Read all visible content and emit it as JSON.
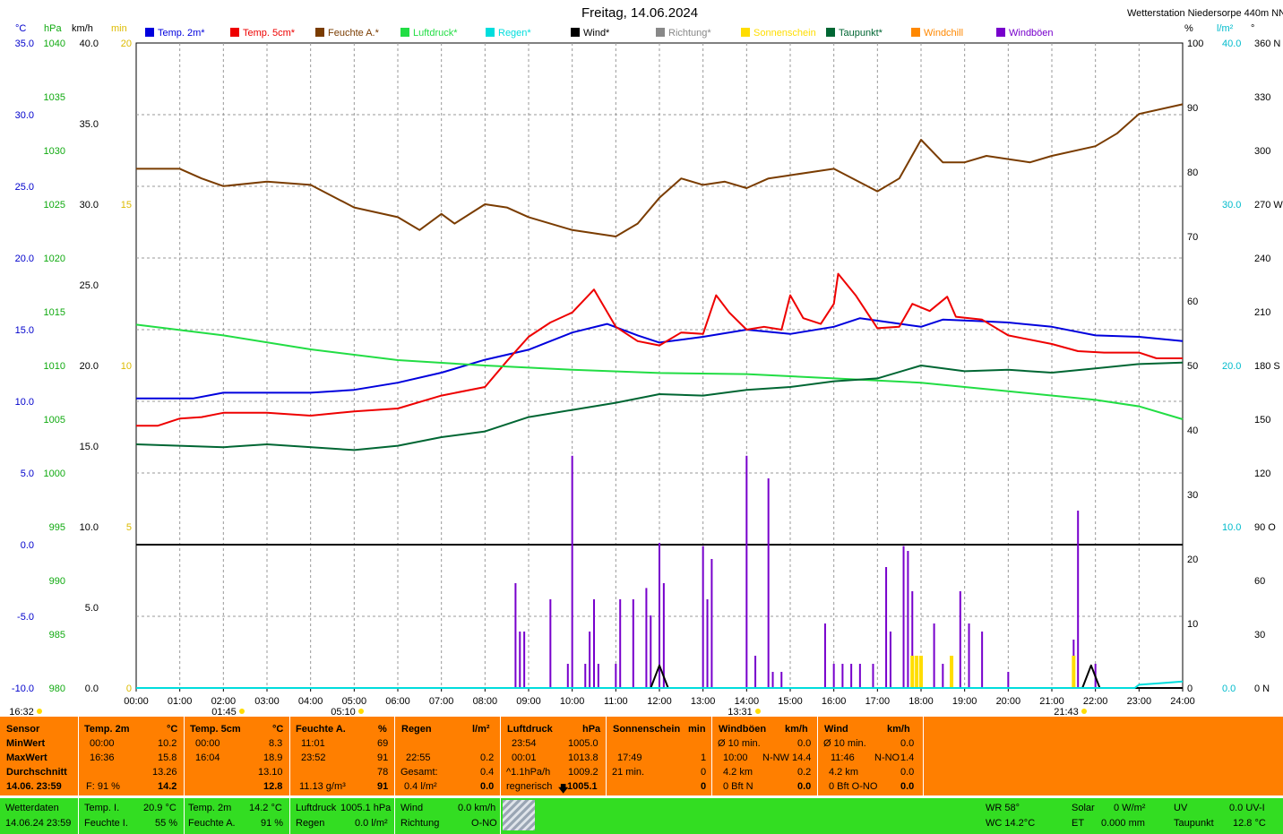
{
  "title": "Freitag, 14.06.2024",
  "station": "Wetterstation Niedersorpe 440m NN",
  "units": {
    "temp": "°C",
    "hpa": "hPa",
    "kmh": "km/h",
    "min": "min",
    "pct": "%",
    "lm2": "l/m²",
    "deg": "°"
  },
  "legend": [
    {
      "label": "Temp. 2m*",
      "color": "#0000dd"
    },
    {
      "label": "Temp. 5cm*",
      "color": "#ee0000"
    },
    {
      "label": "Feuchte A.*",
      "color": "#7a3c00"
    },
    {
      "label": "Luftdruck*",
      "color": "#22dd44"
    },
    {
      "label": "Regen*",
      "color": "#00dddd"
    },
    {
      "label": "Wind*",
      "color": "#000000"
    },
    {
      "label": "Richtung*",
      "color": "#888888"
    },
    {
      "label": "Sonnenschein",
      "color": "#ffdd00"
    },
    {
      "label": "Taupunkt*",
      "color": "#006633"
    },
    {
      "label": "Windchill",
      "color": "#ff8800"
    },
    {
      "label": "Windböen",
      "color": "#7700cc"
    }
  ],
  "axes": {
    "temp": [
      "35.0",
      "30.0",
      "25.0",
      "20.0",
      "15.0",
      "10.0",
      "5.0",
      "0.0",
      "-5.0",
      "-10.0"
    ],
    "hpa": [
      "1040",
      "1035",
      "1030",
      "1025",
      "1020",
      "1015",
      "1010",
      "1005",
      "1000",
      "995",
      "990",
      "985",
      "980"
    ],
    "kmh": [
      "40.0",
      "35.0",
      "30.0",
      "25.0",
      "20.0",
      "15.0",
      "10.0",
      "5.0",
      "0.0"
    ],
    "min": [
      "20",
      "15",
      "10",
      "5",
      "0"
    ],
    "pct": [
      "100",
      "90",
      "80",
      "70",
      "60",
      "50",
      "40",
      "30",
      "20",
      "10",
      "0"
    ],
    "rain": [
      "40.0",
      "30.0",
      "20.0",
      "10.0",
      "0.0"
    ],
    "dir": [
      "360 N",
      "330",
      "300",
      "270 W",
      "240",
      "210",
      "180 S",
      "150",
      "120",
      "90 O",
      "60",
      "30",
      "0 N"
    ],
    "time": [
      "00:00",
      "01:00",
      "02:00",
      "03:00",
      "04:00",
      "05:00",
      "06:00",
      "07:00",
      "08:00",
      "09:00",
      "10:00",
      "11:00",
      "12:00",
      "13:00",
      "14:00",
      "15:00",
      "16:00",
      "17:00",
      "18:00",
      "19:00",
      "20:00",
      "21:00",
      "22:00",
      "23:00",
      "24:00"
    ]
  },
  "markers": [
    {
      "label": "16:32"
    },
    {
      "label": "01:45"
    },
    {
      "label": "05:10"
    },
    {
      "label": "13:31"
    },
    {
      "label": "21:43"
    }
  ],
  "chart_data": {
    "type": "line",
    "title": "Freitag, 14.06.2024",
    "x_unit": "hour",
    "series": [
      {
        "name": "Temp. 2m",
        "unit": "°C",
        "color": "#0000dd",
        "points": [
          [
            0,
            10.2
          ],
          [
            1.3,
            10.2
          ],
          [
            2,
            10.6
          ],
          [
            3,
            10.6
          ],
          [
            4,
            10.6
          ],
          [
            5,
            10.8
          ],
          [
            6,
            11.3
          ],
          [
            7,
            12.0
          ],
          [
            8,
            12.9
          ],
          [
            9,
            13.6
          ],
          [
            10,
            14.8
          ],
          [
            10.8,
            15.4
          ],
          [
            11.5,
            14.6
          ],
          [
            12,
            14.1
          ],
          [
            13,
            14.5
          ],
          [
            14,
            15.0
          ],
          [
            15,
            14.7
          ],
          [
            16,
            15.2
          ],
          [
            16.6,
            15.8
          ],
          [
            17.3,
            15.5
          ],
          [
            18,
            15.2
          ],
          [
            18.5,
            15.7
          ],
          [
            19.3,
            15.6
          ],
          [
            20,
            15.5
          ],
          [
            21,
            15.2
          ],
          [
            22,
            14.6
          ],
          [
            23,
            14.5
          ],
          [
            24,
            14.2
          ]
        ]
      },
      {
        "name": "Temp. 5cm",
        "unit": "°C",
        "color": "#ee0000",
        "points": [
          [
            0,
            8.3
          ],
          [
            0.5,
            8.3
          ],
          [
            1,
            8.8
          ],
          [
            1.5,
            8.9
          ],
          [
            2,
            9.2
          ],
          [
            3,
            9.2
          ],
          [
            4,
            9.0
          ],
          [
            5,
            9.3
          ],
          [
            6,
            9.5
          ],
          [
            7,
            10.4
          ],
          [
            8,
            11.0
          ],
          [
            8.5,
            12.8
          ],
          [
            9,
            14.5
          ],
          [
            9.5,
            15.5
          ],
          [
            10,
            16.2
          ],
          [
            10.5,
            17.8
          ],
          [
            11,
            15.2
          ],
          [
            11.5,
            14.2
          ],
          [
            12,
            13.9
          ],
          [
            12.5,
            14.8
          ],
          [
            13,
            14.7
          ],
          [
            13.3,
            17.4
          ],
          [
            13.6,
            16.2
          ],
          [
            14,
            15.0
          ],
          [
            14.4,
            15.2
          ],
          [
            14.8,
            15.0
          ],
          [
            15,
            17.4
          ],
          [
            15.3,
            15.8
          ],
          [
            15.7,
            15.4
          ],
          [
            16,
            16.8
          ],
          [
            16.1,
            18.9
          ],
          [
            16.5,
            17.4
          ],
          [
            17,
            15.1
          ],
          [
            17.5,
            15.2
          ],
          [
            17.8,
            16.8
          ],
          [
            18.2,
            16.3
          ],
          [
            18.6,
            17.3
          ],
          [
            18.8,
            15.9
          ],
          [
            19.4,
            15.7
          ],
          [
            20,
            14.6
          ],
          [
            21,
            14.0
          ],
          [
            21.6,
            13.5
          ],
          [
            22.2,
            13.4
          ],
          [
            23,
            13.4
          ],
          [
            23.4,
            13.0
          ],
          [
            24,
            13.0
          ]
        ]
      },
      {
        "name": "Feuchte A.",
        "unit": "%",
        "color": "#7a3c00",
        "points": [
          [
            0,
            80.5
          ],
          [
            1,
            80.5
          ],
          [
            1.5,
            79
          ],
          [
            2,
            77.8
          ],
          [
            3,
            78.5
          ],
          [
            4,
            78
          ],
          [
            5,
            74.5
          ],
          [
            6,
            73
          ],
          [
            6.5,
            71
          ],
          [
            7,
            73.5
          ],
          [
            7.3,
            72
          ],
          [
            8,
            75
          ],
          [
            8.5,
            74.5
          ],
          [
            9,
            73
          ],
          [
            10,
            71
          ],
          [
            11,
            70
          ],
          [
            11.5,
            72
          ],
          [
            12,
            76
          ],
          [
            12.5,
            79
          ],
          [
            13,
            78
          ],
          [
            13.5,
            78.5
          ],
          [
            14,
            77.5
          ],
          [
            14.5,
            79
          ],
          [
            15,
            79.5
          ],
          [
            15.5,
            80
          ],
          [
            16,
            80.5
          ],
          [
            17,
            77
          ],
          [
            17.5,
            79
          ],
          [
            18,
            85
          ],
          [
            18.5,
            81.5
          ],
          [
            19,
            81.5
          ],
          [
            19.5,
            82.5
          ],
          [
            20,
            82
          ],
          [
            20.5,
            81.5
          ],
          [
            21,
            82.5
          ],
          [
            22,
            84
          ],
          [
            22.5,
            86
          ],
          [
            23,
            89
          ],
          [
            24,
            90.5
          ]
        ]
      },
      {
        "name": "Luftdruck",
        "unit": "hPa",
        "color": "#22dd44",
        "points": [
          [
            0,
            1013.8
          ],
          [
            2,
            1012.8
          ],
          [
            4,
            1011.5
          ],
          [
            6,
            1010.5
          ],
          [
            8,
            1010.0
          ],
          [
            10,
            1009.6
          ],
          [
            12,
            1009.3
          ],
          [
            14,
            1009.2
          ],
          [
            16,
            1008.8
          ],
          [
            18,
            1008.4
          ],
          [
            20,
            1007.6
          ],
          [
            22,
            1006.8
          ],
          [
            23,
            1006.2
          ],
          [
            24,
            1005.0
          ]
        ]
      },
      {
        "name": "Taupunkt",
        "unit": "°C",
        "color": "#006633",
        "points": [
          [
            0,
            7.0
          ],
          [
            2,
            6.8
          ],
          [
            3,
            7.0
          ],
          [
            5,
            6.6
          ],
          [
            6,
            6.9
          ],
          [
            7,
            7.5
          ],
          [
            8,
            7.9
          ],
          [
            9,
            8.9
          ],
          [
            10,
            9.4
          ],
          [
            11,
            9.9
          ],
          [
            12,
            10.5
          ],
          [
            13,
            10.4
          ],
          [
            14,
            10.8
          ],
          [
            15,
            11.0
          ],
          [
            16,
            11.4
          ],
          [
            17,
            11.6
          ],
          [
            18,
            12.5
          ],
          [
            19,
            12.1
          ],
          [
            20,
            12.2
          ],
          [
            21,
            12.0
          ],
          [
            22,
            12.3
          ],
          [
            23,
            12.6
          ],
          [
            24,
            12.7
          ]
        ]
      },
      {
        "name": "Wind",
        "unit": "km/h",
        "color": "#000000",
        "points": [
          [
            0,
            0
          ],
          [
            11.8,
            0
          ],
          [
            12,
            1.4
          ],
          [
            12.2,
            0
          ],
          [
            21.7,
            0
          ],
          [
            21.9,
            1.4
          ],
          [
            22.1,
            0
          ],
          [
            24,
            0
          ]
        ]
      },
      {
        "name": "Regen",
        "unit": "l/m²",
        "color": "#00dddd",
        "points": [
          [
            0,
            0
          ],
          [
            22.9,
            0
          ],
          [
            23,
            0.2
          ],
          [
            23.5,
            0.3
          ],
          [
            24,
            0.4
          ]
        ]
      },
      {
        "name": "Windböen",
        "unit": "km/h",
        "color": "#7700cc",
        "bars": [
          [
            8.7,
            6.5
          ],
          [
            8.8,
            3.5
          ],
          [
            8.9,
            3.5
          ],
          [
            9.5,
            5.5
          ],
          [
            9.9,
            1.5
          ],
          [
            10,
            14.4
          ],
          [
            10.3,
            1.5
          ],
          [
            10.4,
            3.5
          ],
          [
            10.5,
            5.5
          ],
          [
            10.6,
            1.5
          ],
          [
            11,
            1.5
          ],
          [
            11.1,
            5.5
          ],
          [
            11.4,
            5.5
          ],
          [
            11.7,
            6.2
          ],
          [
            11.8,
            4.5
          ],
          [
            12,
            9.0
          ],
          [
            12.1,
            6.5
          ],
          [
            13,
            8.8
          ],
          [
            13.1,
            5.5
          ],
          [
            13.2,
            8.0
          ],
          [
            14,
            14.4
          ],
          [
            14.2,
            2.0
          ],
          [
            14.5,
            13.0
          ],
          [
            14.6,
            1.0
          ],
          [
            14.8,
            1.0
          ],
          [
            15.8,
            4.0
          ],
          [
            16,
            1.5
          ],
          [
            16.2,
            1.5
          ],
          [
            16.4,
            1.5
          ],
          [
            16.6,
            1.5
          ],
          [
            16.9,
            1.5
          ],
          [
            17.2,
            7.5
          ],
          [
            17.3,
            3.5
          ],
          [
            17.6,
            8.8
          ],
          [
            17.7,
            8.5
          ],
          [
            17.8,
            6.0
          ],
          [
            18.3,
            4.0
          ],
          [
            18.5,
            1.5
          ],
          [
            18.9,
            6.0
          ],
          [
            19.1,
            4.0
          ],
          [
            19.4,
            3.5
          ],
          [
            20,
            1.0
          ],
          [
            21.5,
            3.0
          ],
          [
            21.6,
            11.0
          ],
          [
            22,
            1.5
          ]
        ]
      },
      {
        "name": "Sonnenschein",
        "unit": "min",
        "color": "#ffdd00",
        "bars": [
          [
            17.8,
            1.0
          ],
          [
            17.9,
            1.0
          ],
          [
            18.0,
            1.0
          ],
          [
            18.7,
            1.0
          ],
          [
            21.5,
            1.0
          ]
        ]
      }
    ],
    "axis_ranges": {
      "temp_c": [
        -10,
        35
      ],
      "hpa": [
        980,
        1040
      ],
      "kmh": [
        0,
        40
      ],
      "min": [
        0,
        20
      ],
      "pct": [
        0,
        100
      ],
      "rain_lm2": [
        0,
        40
      ],
      "dir_deg": [
        0,
        360
      ],
      "x_hours": [
        0,
        24
      ]
    },
    "grid": true
  },
  "table": {
    "sensor": {
      "title": "Sensor",
      "rows": [
        "MinWert",
        "MaxWert",
        "Durchschnitt"
      ],
      "date": "14.06. 23:59"
    },
    "temp2m": {
      "title": "Temp. 2m",
      "unit": "°C",
      "min_t": "00:00",
      "min_v": "10.2",
      "max_t": "16:36",
      "max_v": "15.8",
      "avg": "13.26",
      "f_label": "F: 91 %",
      "cur": "14.2"
    },
    "temp5cm": {
      "title": "Temp. 5cm",
      "unit": "°C",
      "min_t": "00:00",
      "min_v": "8.3",
      "max_t": "16:04",
      "max_v": "18.9",
      "avg": "13.10",
      "cur": "12.8"
    },
    "feuchte": {
      "title": "Feuchte A.",
      "unit": "%",
      "min_t": "11:01",
      "min_v": "69",
      "max_t": "23:52",
      "max_v": "91",
      "avg": "78",
      "abs": "11.13 g/m³",
      "cur": "91"
    },
    "regen": {
      "title": "Regen",
      "unit": "l/m²",
      "t1": "22:55",
      "v1": "0.2",
      "g_label": "Gesamt:",
      "g_v": "0.4",
      "sub": "0.4 l/m²",
      "cur": "0.0"
    },
    "luftdruck": {
      "title": "Luftdruck",
      "unit": "hPa",
      "min_t": "23:54",
      "min_v": "1005.0",
      "max_t": "00:01",
      "max_v": "1013.8",
      "trend_l": "^1.1hPa/h",
      "trend_v": "1009.2",
      "state": "regnerisch",
      "cur": "1005.1"
    },
    "sonne": {
      "title": "Sonnenschein",
      "unit": "min",
      "t1": "17:49",
      "v1": "1",
      "sum_l": "21 min.",
      "sum_v": "0",
      "cur": "0"
    },
    "boeen": {
      "title": "Windböen",
      "unit": "km/h",
      "r1l": "Ø 10 min.",
      "r1v": "0.0",
      "r2l": "10:00",
      "r2d": "N-NW",
      "r2v": "14.4",
      "r3l": "4.2 km",
      "r3v": "0.2",
      "r4l": "0 Bft N",
      "cur": "0.0"
    },
    "wind": {
      "title": "Wind",
      "unit": "km/h",
      "r1l": "Ø 10 min.",
      "r1v": "0.0",
      "r2l": "11:46",
      "r2d": "N-NO",
      "r2v": "1.4",
      "r3l": "4.2 km",
      "r3v": "0.0",
      "r4l": "0 Bft O-NO",
      "cur": "0.0"
    }
  },
  "current": {
    "title": "Wetterdaten",
    "date": "14.06.24 23:59",
    "temp_i_l": "Temp. I.",
    "temp_i_v": "20.9 °C",
    "feuchte_i_l": "Feuchte I.",
    "feuchte_i_v": "55 %",
    "temp2_l": "Temp. 2m",
    "temp2_v": "14.2 °C",
    "feuchte_a_l": "Feuchte A.",
    "feuchte_a_v": "91 %",
    "luft_l": "Luftdruck",
    "luft_v": "1005.1 hPa",
    "regen_l": "Regen",
    "regen_v": "0.0 l/m²",
    "wind_l": "Wind",
    "wind_v": "0.0 km/h",
    "richt_l": "Richtung",
    "richt_v": "O-NO",
    "wr": "WR 58°",
    "wc": "WC 14.2°C",
    "solar_l": "Solar",
    "solar_v": "0 W/m²",
    "et_l": "ET",
    "et_v": "0.000 mm",
    "uv_l": "UV",
    "uv_v": "0.0 UV-I",
    "taup_l": "Taupunkt",
    "taup_v": "12.8 °C"
  }
}
